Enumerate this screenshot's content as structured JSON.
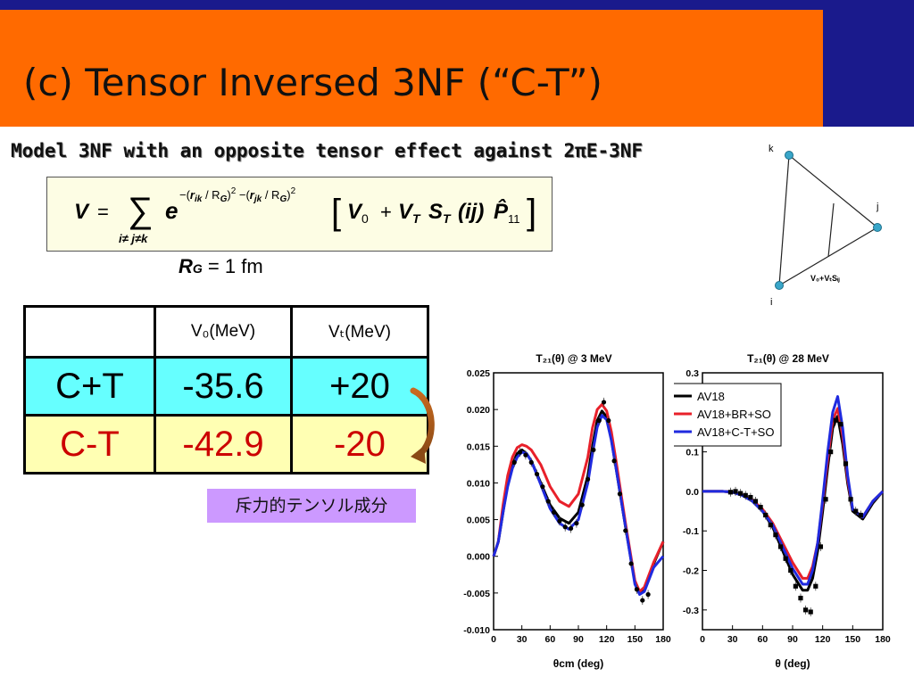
{
  "slide": {
    "title": "(c) Tensor Inversed 3NF  (“C-T”)",
    "subtitle": "Model 3NF with an opposite tensor effect against 2πE-3NF",
    "rg": {
      "symbol": "R",
      "sub": "G",
      "eq": "= 1 fm"
    },
    "note": "斥力的テンソル成分",
    "colors": {
      "header_strip": "#1a1a8c",
      "title_bar": "#ff6a00",
      "row_ct": "#66ffff",
      "row_cmt": "#ffffb3",
      "note": "#cc99ff"
    }
  },
  "formula": {
    "lhs": "V",
    "eq": "=",
    "sum_sign": "∑",
    "sum_limits": "i≠ j≠k",
    "e": "e",
    "exp_parts": {
      "a": "−(",
      "r1": "r",
      "s1": "ik",
      "m1": " / R",
      "g1": "G",
      "p1": ")",
      "sq1": "2",
      "b": " −(",
      "r2": "r",
      "s2": "jk",
      "m2": " / R",
      "g2": "G",
      "p2": ")",
      "sq2": "2"
    },
    "bracket_open": "[",
    "v0": "V",
    "v0_sub": "0",
    "plus": "+",
    "vt": "V",
    "vt_sub": "T",
    "st": "S",
    "st_sub": "T",
    "ij": "(ij)",
    "p": "P̂",
    "p_sub": "11",
    "bracket_close": "]"
  },
  "triangle": {
    "labels": {
      "k": "k",
      "j": "j",
      "i": "i"
    },
    "edge_label": "V₀+VₜSᵢⱼ"
  },
  "table": {
    "headers": [
      "",
      "V₀(MeV)",
      "Vₜ(MeV)"
    ],
    "rows": [
      {
        "label": "C+T",
        "v0": "-35.6",
        "vt": "+20"
      },
      {
        "label": "C-T",
        "v0": "-42.9",
        "vt": "-20"
      }
    ]
  },
  "chart_data": [
    {
      "type": "line",
      "title": "T₂₁(θ) @ 3 MeV",
      "xlabel": "θcm (deg)",
      "xlim": [
        0,
        180
      ],
      "ylim": [
        -0.01,
        0.025
      ],
      "xticks": [
        "0",
        "30",
        "60",
        "90",
        "120",
        "150",
        "180"
      ],
      "yticks": [
        "0.025",
        "0.020",
        "0.015",
        "0.010",
        "0.005",
        "0.000",
        "-0.005",
        "-0.010"
      ],
      "series": [
        {
          "name": "AV18",
          "color": "#000000",
          "x": [
            0,
            5,
            10,
            15,
            20,
            25,
            30,
            35,
            40,
            50,
            60,
            70,
            80,
            90,
            100,
            105,
            110,
            115,
            120,
            125,
            130,
            140,
            150,
            155,
            160,
            170,
            180
          ],
          "y": [
            0.0,
            0.002,
            0.006,
            0.01,
            0.0125,
            0.014,
            0.0145,
            0.014,
            0.013,
            0.01,
            0.007,
            0.0052,
            0.0045,
            0.006,
            0.011,
            0.015,
            0.0185,
            0.0198,
            0.019,
            0.016,
            0.012,
            0.004,
            -0.0035,
            -0.005,
            -0.0045,
            -0.001,
            0.002
          ]
        },
        {
          "name": "AV18+BR+SO",
          "color": "#e8202a",
          "x": [
            0,
            5,
            10,
            15,
            20,
            25,
            30,
            35,
            40,
            50,
            60,
            70,
            80,
            90,
            100,
            105,
            110,
            115,
            120,
            125,
            130,
            140,
            150,
            155,
            160,
            170,
            180
          ],
          "y": [
            0.0,
            0.002,
            0.007,
            0.011,
            0.0135,
            0.0148,
            0.0152,
            0.015,
            0.0145,
            0.0125,
            0.0095,
            0.0075,
            0.0068,
            0.0085,
            0.0135,
            0.0175,
            0.02,
            0.0207,
            0.0198,
            0.017,
            0.013,
            0.0045,
            -0.0033,
            -0.0048,
            -0.0042,
            -0.0008,
            0.002
          ]
        },
        {
          "name": "AV18+C-T+SO",
          "color": "#1f2adf",
          "x": [
            0,
            5,
            10,
            15,
            20,
            25,
            30,
            35,
            40,
            50,
            60,
            70,
            80,
            90,
            100,
            105,
            110,
            115,
            120,
            125,
            130,
            140,
            150,
            155,
            160,
            170,
            180
          ],
          "y": [
            0.0,
            0.002,
            0.006,
            0.0095,
            0.012,
            0.0135,
            0.0142,
            0.014,
            0.013,
            0.0098,
            0.0065,
            0.0045,
            0.0037,
            0.005,
            0.01,
            0.014,
            0.0176,
            0.0192,
            0.0186,
            0.0158,
            0.012,
            0.004,
            -0.0038,
            -0.0052,
            -0.0048,
            -0.0015,
            0.0
          ]
        },
        {
          "name": "data",
          "color": "#000000",
          "x": [
            22,
            28,
            34,
            40,
            46,
            52,
            58,
            64,
            70,
            76,
            82,
            88,
            94,
            100,
            106,
            112,
            117,
            122,
            128,
            134,
            140,
            146,
            152,
            158,
            164
          ],
          "y": [
            0.0128,
            0.0142,
            0.0138,
            0.0128,
            0.0112,
            0.0095,
            0.0075,
            0.006,
            0.0048,
            0.004,
            0.0038,
            0.0045,
            0.007,
            0.0105,
            0.0145,
            0.0185,
            0.021,
            0.0185,
            0.013,
            0.0085,
            0.0035,
            -0.001,
            -0.0045,
            -0.006,
            -0.0052
          ]
        }
      ]
    },
    {
      "type": "line",
      "title": "T₂₁(θ) @ 28 MeV",
      "xlabel": "θ (deg)",
      "xlim": [
        0,
        180
      ],
      "ylim": [
        -0.35,
        0.3
      ],
      "xticks": [
        "0",
        "30",
        "60",
        "90",
        "120",
        "150",
        "180"
      ],
      "yticks": [
        "0.3",
        "0.2",
        "0.1",
        "0.0",
        "-0.1",
        "-0.2",
        "-0.3"
      ],
      "legend": {
        "position": "top-right",
        "entries": [
          "AV18",
          "AV18+BR+SO",
          "AV18+C-T+SO"
        ]
      },
      "series": [
        {
          "name": "AV18",
          "color": "#000000",
          "x": [
            0,
            20,
            30,
            40,
            50,
            60,
            70,
            80,
            90,
            100,
            105,
            110,
            115,
            120,
            125,
            130,
            135,
            140,
            145,
            150,
            160,
            170,
            180
          ],
          "y": [
            0.0,
            0.0,
            -0.002,
            -0.01,
            -0.025,
            -0.05,
            -0.09,
            -0.15,
            -0.21,
            -0.25,
            -0.25,
            -0.22,
            -0.15,
            -0.05,
            0.06,
            0.16,
            0.19,
            0.12,
            0.02,
            -0.05,
            -0.07,
            -0.03,
            0.0
          ]
        },
        {
          "name": "AV18+BR+SO",
          "color": "#e8202a",
          "x": [
            0,
            20,
            30,
            40,
            50,
            60,
            70,
            80,
            90,
            100,
            105,
            110,
            115,
            120,
            125,
            130,
            135,
            140,
            145,
            150,
            160,
            170,
            180
          ],
          "y": [
            0.0,
            0.0,
            -0.002,
            -0.009,
            -0.022,
            -0.045,
            -0.08,
            -0.13,
            -0.18,
            -0.22,
            -0.22,
            -0.19,
            -0.13,
            -0.03,
            0.08,
            0.18,
            0.21,
            0.14,
            0.03,
            -0.045,
            -0.065,
            -0.025,
            0.0
          ]
        },
        {
          "name": "AV18+C-T+SO",
          "color": "#1f2adf",
          "x": [
            0,
            20,
            30,
            40,
            50,
            60,
            70,
            80,
            90,
            100,
            105,
            110,
            115,
            120,
            125,
            130,
            135,
            140,
            145,
            150,
            160,
            170,
            180
          ],
          "y": [
            0.0,
            0.0,
            -0.002,
            -0.01,
            -0.025,
            -0.05,
            -0.085,
            -0.14,
            -0.195,
            -0.235,
            -0.235,
            -0.2,
            -0.13,
            -0.02,
            0.1,
            0.2,
            0.24,
            0.16,
            0.04,
            -0.045,
            -0.065,
            -0.025,
            0.0
          ]
        },
        {
          "name": "data",
          "color": "#000000",
          "x": [
            28,
            33,
            38,
            43,
            48,
            53,
            58,
            63,
            68,
            73,
            78,
            83,
            88,
            93,
            98,
            103,
            108,
            113,
            118,
            123,
            128,
            133,
            138,
            143,
            148,
            153,
            158
          ],
          "y": [
            -0.002,
            0.0,
            -0.005,
            -0.01,
            -0.015,
            -0.025,
            -0.04,
            -0.06,
            -0.085,
            -0.11,
            -0.14,
            -0.17,
            -0.2,
            -0.24,
            -0.27,
            -0.3,
            -0.305,
            -0.24,
            -0.14,
            -0.02,
            0.1,
            0.18,
            0.17,
            0.07,
            -0.02,
            -0.05,
            -0.06
          ]
        }
      ]
    }
  ]
}
